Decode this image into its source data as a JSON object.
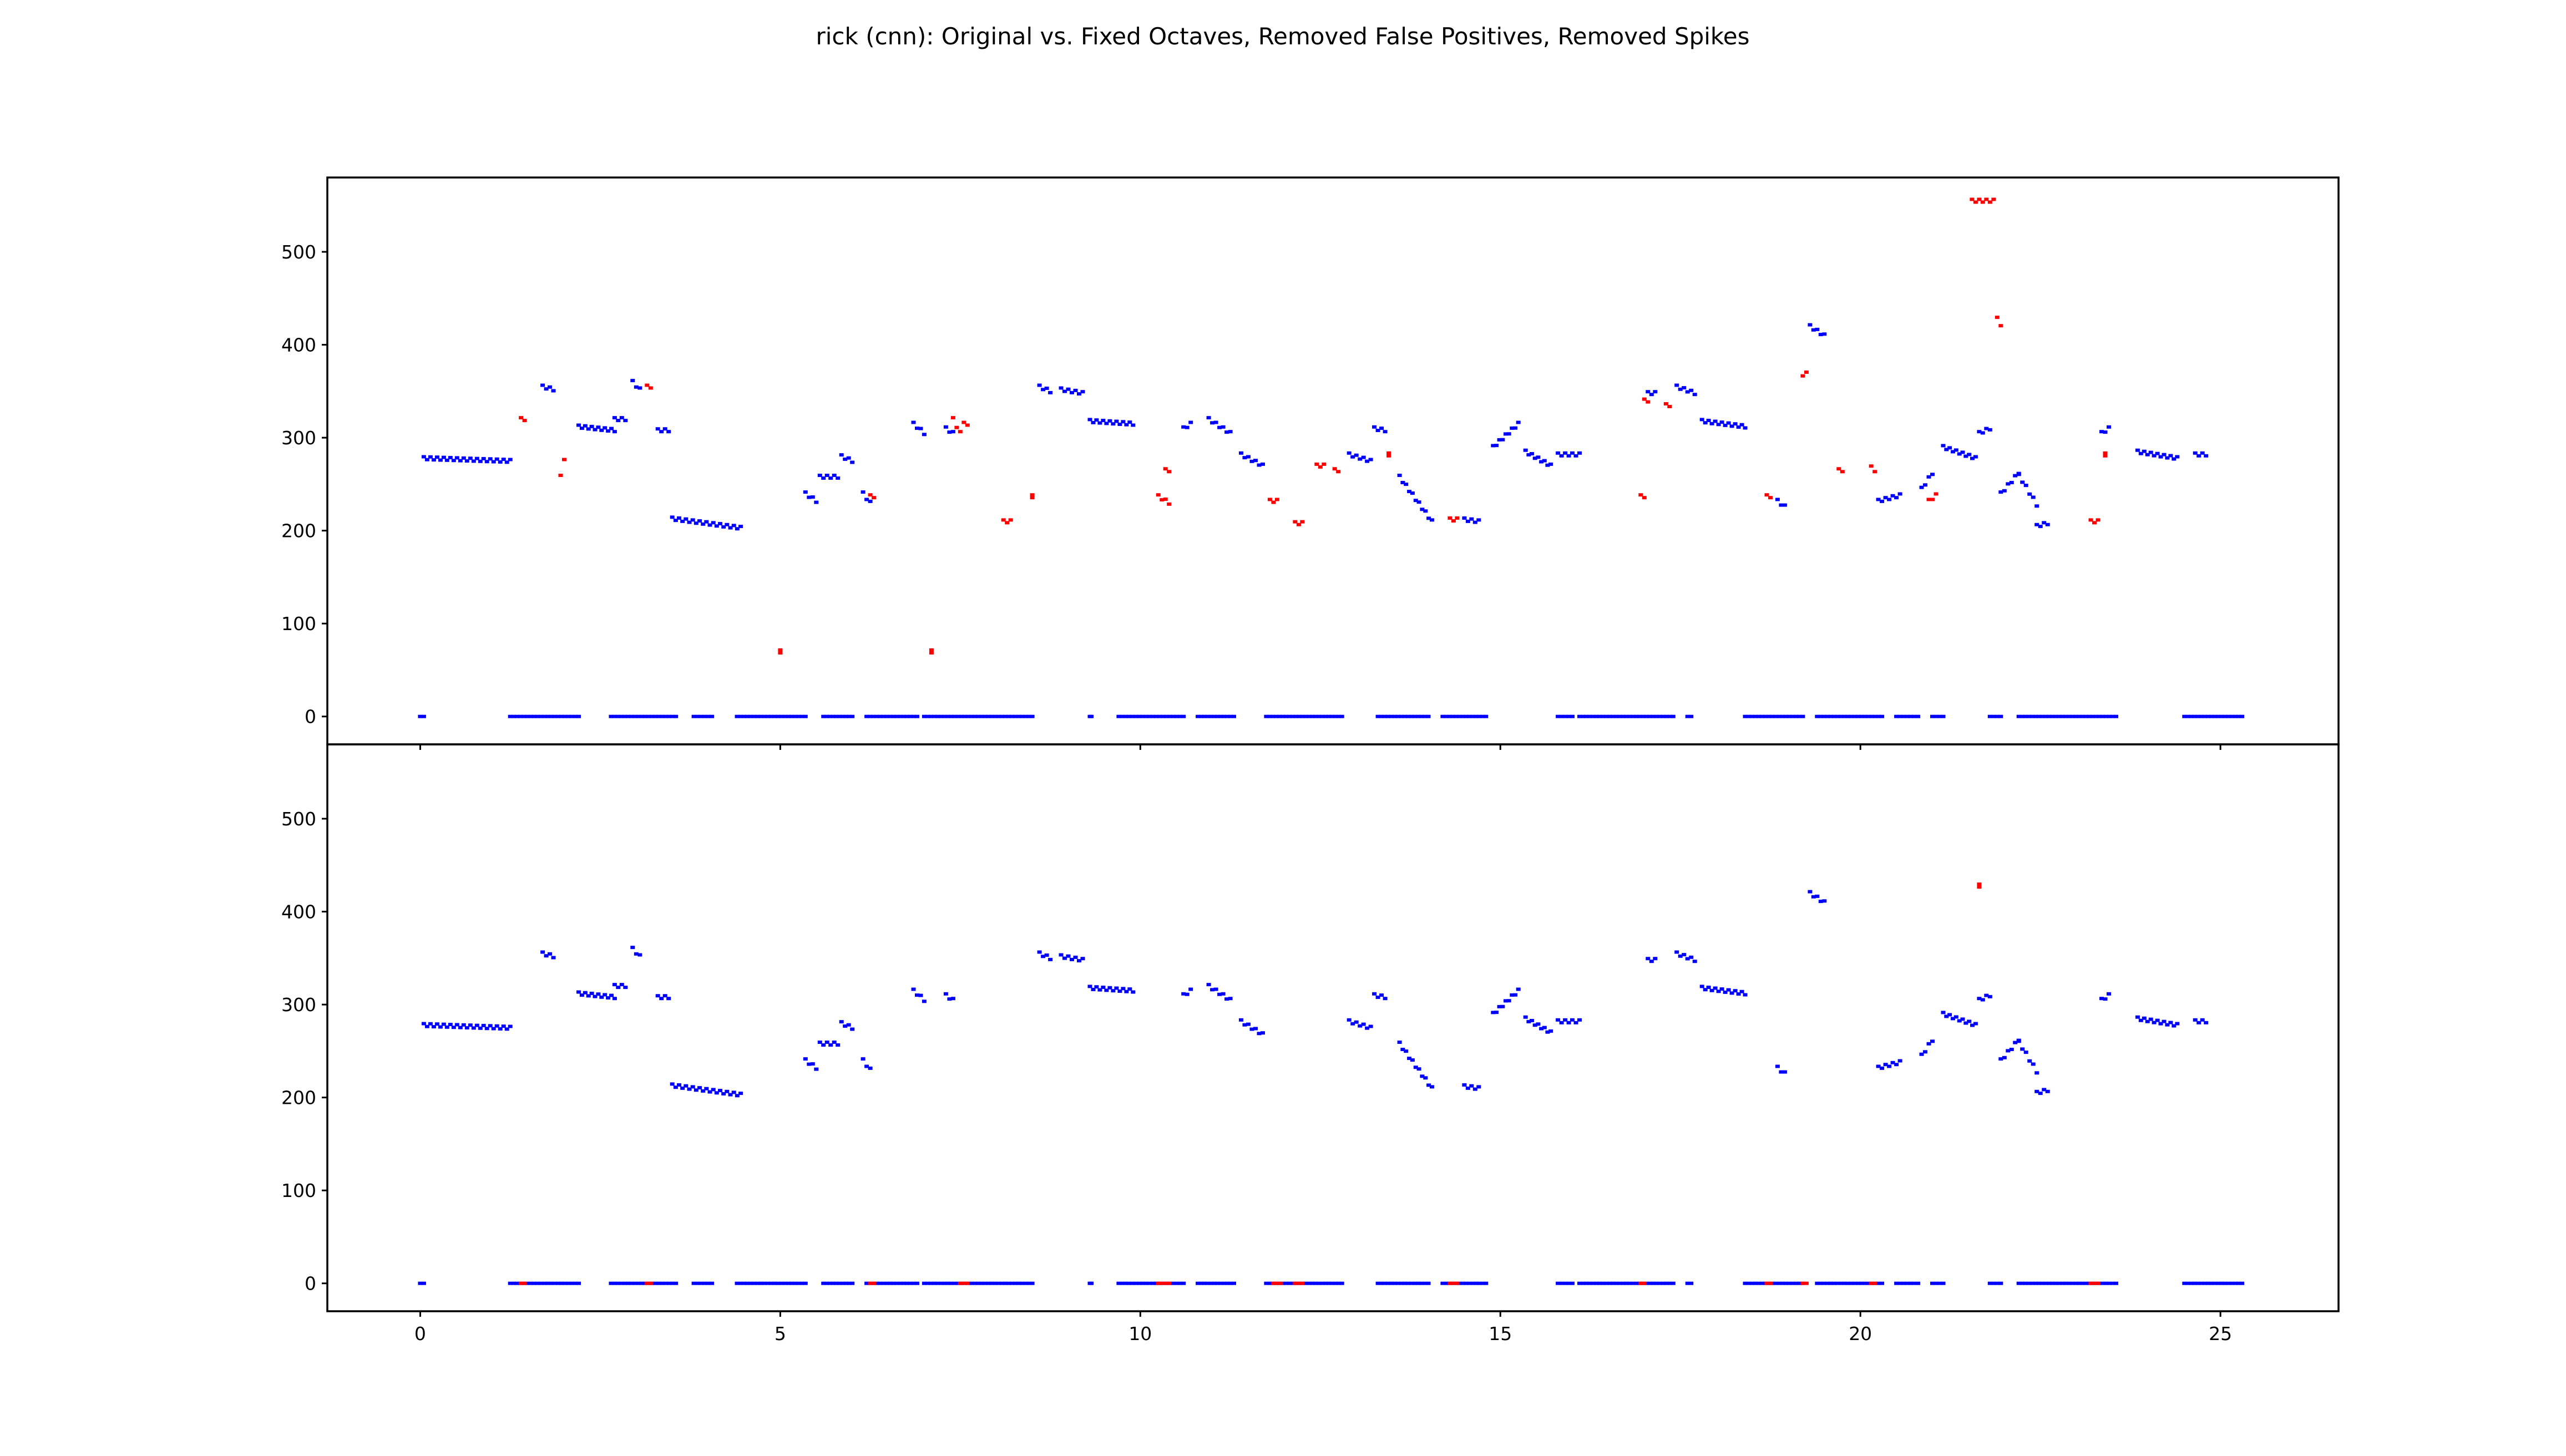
{
  "title": "rick (cnn): Original vs. Fixed Octaves, Removed False Positives, Removed Spikes",
  "colors": {
    "kept": "#0000ff",
    "changed": "#ff0000",
    "axes": "#000000",
    "background": "#ffffff"
  },
  "chart_data": [
    {
      "type": "scatter",
      "panel": "top",
      "xlim": [
        -1.29,
        26.64
      ],
      "ylim": [
        -30,
        580
      ],
      "xticks": [
        0,
        5,
        10,
        15,
        20,
        25
      ],
      "yticks": [
        0,
        100,
        200,
        300,
        400,
        500
      ],
      "xtick_labels": [],
      "ytick_labels": [
        "0",
        "100",
        "200",
        "300",
        "400",
        "500"
      ],
      "grid": false,
      "series": [
        {
          "color": "blue",
          "segments": [
            [
              0.0,
              0.05,
              0,
              0
            ],
            [
              1.25,
              2.2,
              0,
              0
            ],
            [
              2.65,
              3.55,
              0,
              0
            ],
            [
              3.8,
              4.05,
              0,
              0
            ],
            [
              4.4,
              5.35,
              0,
              0
            ],
            [
              5.6,
              6.0,
              0,
              0
            ],
            [
              6.2,
              6.9,
              0,
              0
            ],
            [
              7.0,
              8.5,
              0,
              0
            ],
            [
              9.3,
              9.32,
              0,
              0
            ],
            [
              9.7,
              10.6,
              0,
              0
            ],
            [
              10.8,
              11.3,
              0,
              0
            ],
            [
              11.75,
              12.8,
              0,
              0
            ],
            [
              13.3,
              14.0,
              0,
              0
            ],
            [
              14.2,
              14.8,
              0,
              0
            ],
            [
              15.8,
              16.0,
              0,
              0
            ],
            [
              16.1,
              17.4,
              0,
              0
            ],
            [
              17.6,
              17.65,
              0,
              0
            ],
            [
              18.4,
              19.2,
              0,
              0
            ],
            [
              19.4,
              20.3,
              0,
              0
            ],
            [
              20.5,
              20.8,
              0,
              0
            ],
            [
              21.0,
              21.15,
              0,
              0
            ],
            [
              21.8,
              21.95,
              0,
              0
            ],
            [
              22.2,
              23.55,
              0,
              0
            ],
            [
              24.5,
              25.3,
              0,
              0
            ],
            [
              0.05,
              1.25,
              278,
              275
            ],
            [
              1.7,
              1.85,
              355,
              352
            ],
            [
              2.2,
              2.7,
              312,
              308
            ],
            [
              2.7,
              2.85,
              320,
              320
            ],
            [
              2.95,
              3.05,
              360,
              352
            ],
            [
              3.3,
              3.45,
              308,
              308
            ],
            [
              3.5,
              4.45,
              213,
              203
            ],
            [
              5.35,
              5.5,
              240,
              232
            ],
            [
              5.55,
              5.8,
              258,
              258
            ],
            [
              5.85,
              6.0,
              280,
              275
            ],
            [
              6.15,
              6.25,
              240,
              230
            ],
            [
              6.85,
              7.0,
              315,
              305
            ],
            [
              7.3,
              7.4,
              310,
              305
            ],
            [
              8.6,
              8.75,
              355,
              350
            ],
            [
              8.9,
              9.2,
              352,
              348
            ],
            [
              9.3,
              9.9,
              318,
              315
            ],
            [
              10.6,
              10.7,
              310,
              315
            ],
            [
              10.95,
              11.25,
              320,
              305
            ],
            [
              11.4,
              11.7,
              282,
              270
            ],
            [
              12.9,
              13.2,
              282,
              275
            ],
            [
              13.25,
              13.4,
              310,
              308
            ],
            [
              13.6,
              14.05,
              258,
              210
            ],
            [
              14.5,
              14.7,
              212,
              210
            ],
            [
              14.9,
              15.25,
              290,
              315
            ],
            [
              15.35,
              15.7,
              285,
              270
            ],
            [
              15.8,
              16.1,
              282,
              282
            ],
            [
              17.05,
              17.15,
              348,
              348
            ],
            [
              17.45,
              17.7,
              355,
              348
            ],
            [
              17.8,
              18.4,
              318,
              312
            ],
            [
              18.85,
              18.95,
              232,
              226
            ],
            [
              19.3,
              19.5,
              420,
              410
            ],
            [
              20.25,
              20.55,
              232,
              238
            ],
            [
              20.85,
              21.0,
              245,
              262
            ],
            [
              21.15,
              21.6,
              290,
              278
            ],
            [
              21.65,
              21.8,
              305,
              310
            ],
            [
              21.95,
              22.2,
              240,
              262
            ],
            [
              22.2,
              22.45,
              260,
              228
            ],
            [
              22.45,
              22.6,
              205,
              208
            ],
            [
              23.35,
              23.45,
              305,
              310
            ],
            [
              23.85,
              24.4,
              285,
              278
            ],
            [
              24.65,
              24.8,
              282,
              282
            ]
          ]
        },
        {
          "color": "red",
          "segments": [
            [
              1.4,
              1.45,
              320,
              320
            ],
            [
              1.95,
              2.0,
              258,
              278
            ],
            [
              3.15,
              3.2,
              355,
              355
            ],
            [
              5.0,
              5.0,
              70,
              70
            ],
            [
              6.25,
              6.3,
              237,
              237
            ],
            [
              7.1,
              7.1,
              70,
              70
            ],
            [
              7.4,
              7.5,
              320,
              305
            ],
            [
              7.55,
              7.6,
              315,
              315
            ],
            [
              8.1,
              8.2,
              210,
              210
            ],
            [
              8.5,
              8.5,
              237,
              237
            ],
            [
              10.25,
              10.4,
              237,
              230
            ],
            [
              10.35,
              10.4,
              265,
              265
            ],
            [
              11.8,
              11.9,
              232,
              232
            ],
            [
              12.15,
              12.25,
              208,
              208
            ],
            [
              12.45,
              12.55,
              270,
              270
            ],
            [
              12.7,
              12.75,
              265,
              265
            ],
            [
              13.45,
              13.45,
              282,
              282
            ],
            [
              14.3,
              14.4,
              212,
              212
            ],
            [
              16.95,
              17.0,
              237,
              237
            ],
            [
              17.0,
              17.05,
              340,
              340
            ],
            [
              17.3,
              17.35,
              335,
              335
            ],
            [
              18.7,
              18.75,
              237,
              237
            ],
            [
              19.2,
              19.25,
              365,
              372
            ],
            [
              19.7,
              19.75,
              265,
              265
            ],
            [
              20.15,
              20.2,
              268,
              265
            ],
            [
              20.95,
              21.05,
              232,
              238
            ],
            [
              21.55,
              21.85,
              555,
              555
            ],
            [
              21.9,
              21.95,
              428,
              422
            ],
            [
              23.2,
              23.3,
              210,
              210
            ],
            [
              23.4,
              23.4,
              282,
              282
            ]
          ]
        }
      ]
    },
    {
      "type": "scatter",
      "panel": "bottom",
      "xlim": [
        -1.29,
        26.64
      ],
      "ylim": [
        -30,
        580
      ],
      "xticks": [
        0,
        5,
        10,
        15,
        20,
        25
      ],
      "yticks": [
        0,
        100,
        200,
        300,
        400,
        500
      ],
      "xtick_labels": [
        "0",
        "5",
        "10",
        "15",
        "20",
        "25"
      ],
      "ytick_labels": [
        "0",
        "100",
        "200",
        "300",
        "400",
        "500"
      ],
      "grid": false,
      "series": [
        {
          "color": "blue",
          "segments": [
            [
              0.0,
              0.05,
              0,
              0
            ],
            [
              1.25,
              2.2,
              0,
              0
            ],
            [
              2.65,
              3.55,
              0,
              0
            ],
            [
              3.8,
              4.05,
              0,
              0
            ],
            [
              4.4,
              5.35,
              0,
              0
            ],
            [
              5.6,
              6.0,
              0,
              0
            ],
            [
              6.2,
              6.9,
              0,
              0
            ],
            [
              7.0,
              8.5,
              0,
              0
            ],
            [
              9.3,
              9.32,
              0,
              0
            ],
            [
              9.7,
              10.6,
              0,
              0
            ],
            [
              10.8,
              11.3,
              0,
              0
            ],
            [
              11.75,
              12.8,
              0,
              0
            ],
            [
              13.3,
              14.0,
              0,
              0
            ],
            [
              14.2,
              14.8,
              0,
              0
            ],
            [
              15.8,
              16.0,
              0,
              0
            ],
            [
              16.1,
              17.4,
              0,
              0
            ],
            [
              17.6,
              17.65,
              0,
              0
            ],
            [
              18.4,
              19.2,
              0,
              0
            ],
            [
              19.4,
              20.3,
              0,
              0
            ],
            [
              20.5,
              20.8,
              0,
              0
            ],
            [
              21.0,
              21.15,
              0,
              0
            ],
            [
              21.8,
              21.95,
              0,
              0
            ],
            [
              22.2,
              23.55,
              0,
              0
            ],
            [
              24.5,
              25.3,
              0,
              0
            ],
            [
              0.05,
              1.25,
              278,
              275
            ],
            [
              1.7,
              1.85,
              355,
              352
            ],
            [
              2.2,
              2.7,
              312,
              308
            ],
            [
              2.7,
              2.85,
              320,
              320
            ],
            [
              2.95,
              3.05,
              360,
              352
            ],
            [
              3.3,
              3.45,
              308,
              308
            ],
            [
              3.5,
              4.45,
              213,
              203
            ],
            [
              5.35,
              5.5,
              240,
              232
            ],
            [
              5.55,
              5.8,
              258,
              258
            ],
            [
              5.85,
              6.0,
              280,
              275
            ],
            [
              6.15,
              6.25,
              240,
              230
            ],
            [
              6.85,
              7.0,
              315,
              305
            ],
            [
              7.3,
              7.4,
              310,
              305
            ],
            [
              8.6,
              8.75,
              355,
              350
            ],
            [
              8.9,
              9.2,
              352,
              348
            ],
            [
              9.3,
              9.9,
              318,
              315
            ],
            [
              10.6,
              10.7,
              310,
              315
            ],
            [
              10.95,
              11.25,
              320,
              305
            ],
            [
              11.4,
              11.7,
              282,
              268
            ],
            [
              12.9,
              13.2,
              282,
              275
            ],
            [
              13.25,
              13.4,
              310,
              308
            ],
            [
              13.6,
              14.05,
              258,
              210
            ],
            [
              14.5,
              14.7,
              212,
              210
            ],
            [
              14.9,
              15.25,
              290,
              315
            ],
            [
              15.35,
              15.7,
              285,
              270
            ],
            [
              15.8,
              16.1,
              282,
              282
            ],
            [
              17.05,
              17.15,
              348,
              348
            ],
            [
              17.45,
              17.7,
              355,
              348
            ],
            [
              17.8,
              18.4,
              318,
              312
            ],
            [
              18.85,
              18.95,
              232,
              226
            ],
            [
              19.3,
              19.5,
              420,
              410
            ],
            [
              20.25,
              20.55,
              232,
              238
            ],
            [
              20.85,
              21.0,
              245,
              262
            ],
            [
              21.15,
              21.6,
              290,
              278
            ],
            [
              21.65,
              21.8,
              305,
              310
            ],
            [
              21.95,
              22.2,
              240,
              262
            ],
            [
              22.2,
              22.45,
              260,
              228
            ],
            [
              22.45,
              22.6,
              205,
              208
            ],
            [
              23.35,
              23.45,
              305,
              310
            ],
            [
              23.85,
              24.4,
              285,
              278
            ],
            [
              24.65,
              24.8,
              282,
              282
            ]
          ]
        },
        {
          "color": "red",
          "segments": [
            [
              1.4,
              1.45,
              0,
              0
            ],
            [
              3.15,
              3.2,
              0,
              0
            ],
            [
              6.25,
              6.3,
              0,
              0
            ],
            [
              7.5,
              7.6,
              0,
              0
            ],
            [
              10.25,
              10.4,
              0,
              0
            ],
            [
              11.85,
              11.95,
              0,
              0
            ],
            [
              12.15,
              12.25,
              0,
              0
            ],
            [
              14.3,
              14.4,
              0,
              0
            ],
            [
              16.95,
              17.0,
              0,
              0
            ],
            [
              18.7,
              18.75,
              0,
              0
            ],
            [
              19.2,
              19.25,
              0,
              0
            ],
            [
              20.15,
              20.2,
              0,
              0
            ],
            [
              23.2,
              23.3,
              0,
              0
            ],
            [
              21.65,
              21.65,
              428,
              428
            ]
          ]
        }
      ]
    }
  ]
}
